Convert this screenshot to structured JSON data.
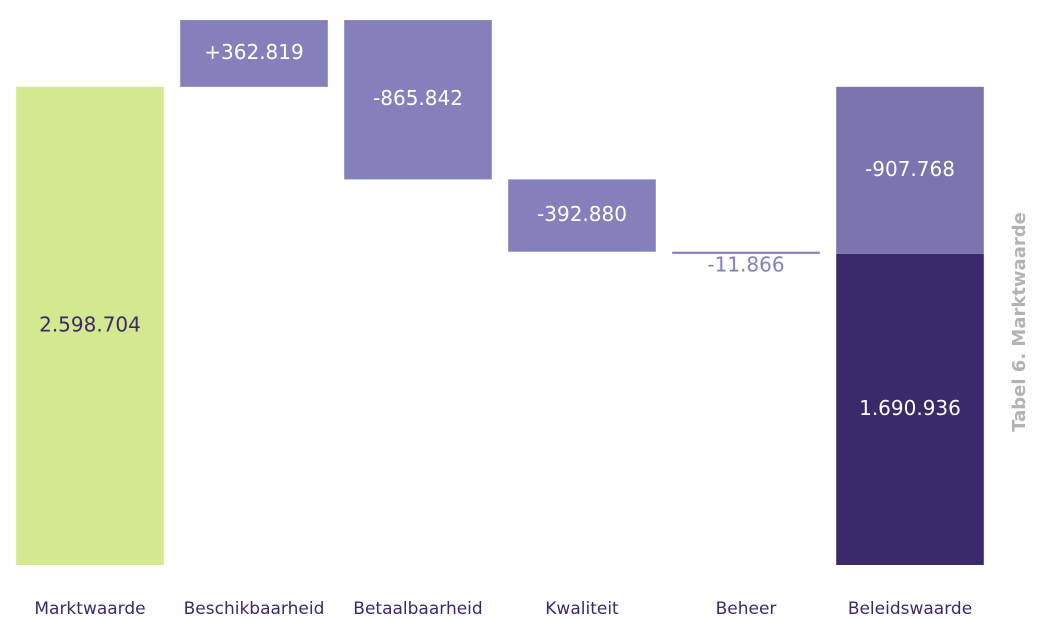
{
  "chart_data": {
    "type": "waterfall",
    "title": "Tabel 6. Marktwaarde",
    "categories": [
      "Marktwaarde",
      "Beschikbaarheid",
      "Betaalbaarheid",
      "Kwaliteit",
      "Beheer",
      "Beleidswaarde"
    ],
    "measures": [
      "absolute",
      "relative",
      "relative",
      "relative",
      "relative",
      "total"
    ],
    "values": [
      2598704,
      362819,
      -865842,
      -392880,
      -11866,
      1690936
    ],
    "value_labels": [
      "2.598.704",
      "+362.819",
      "-865.842",
      "-392.880",
      "-11.866",
      "1.690.936"
    ],
    "total_remainder": -907768,
    "total_remainder_label": "-907.768",
    "colors": {
      "absolute": "#d4e88f",
      "relative": "#8580bb",
      "total": "#3b2a6b",
      "remainder": "#7b74ae"
    },
    "ylim": [
      0,
      3000000
    ]
  }
}
